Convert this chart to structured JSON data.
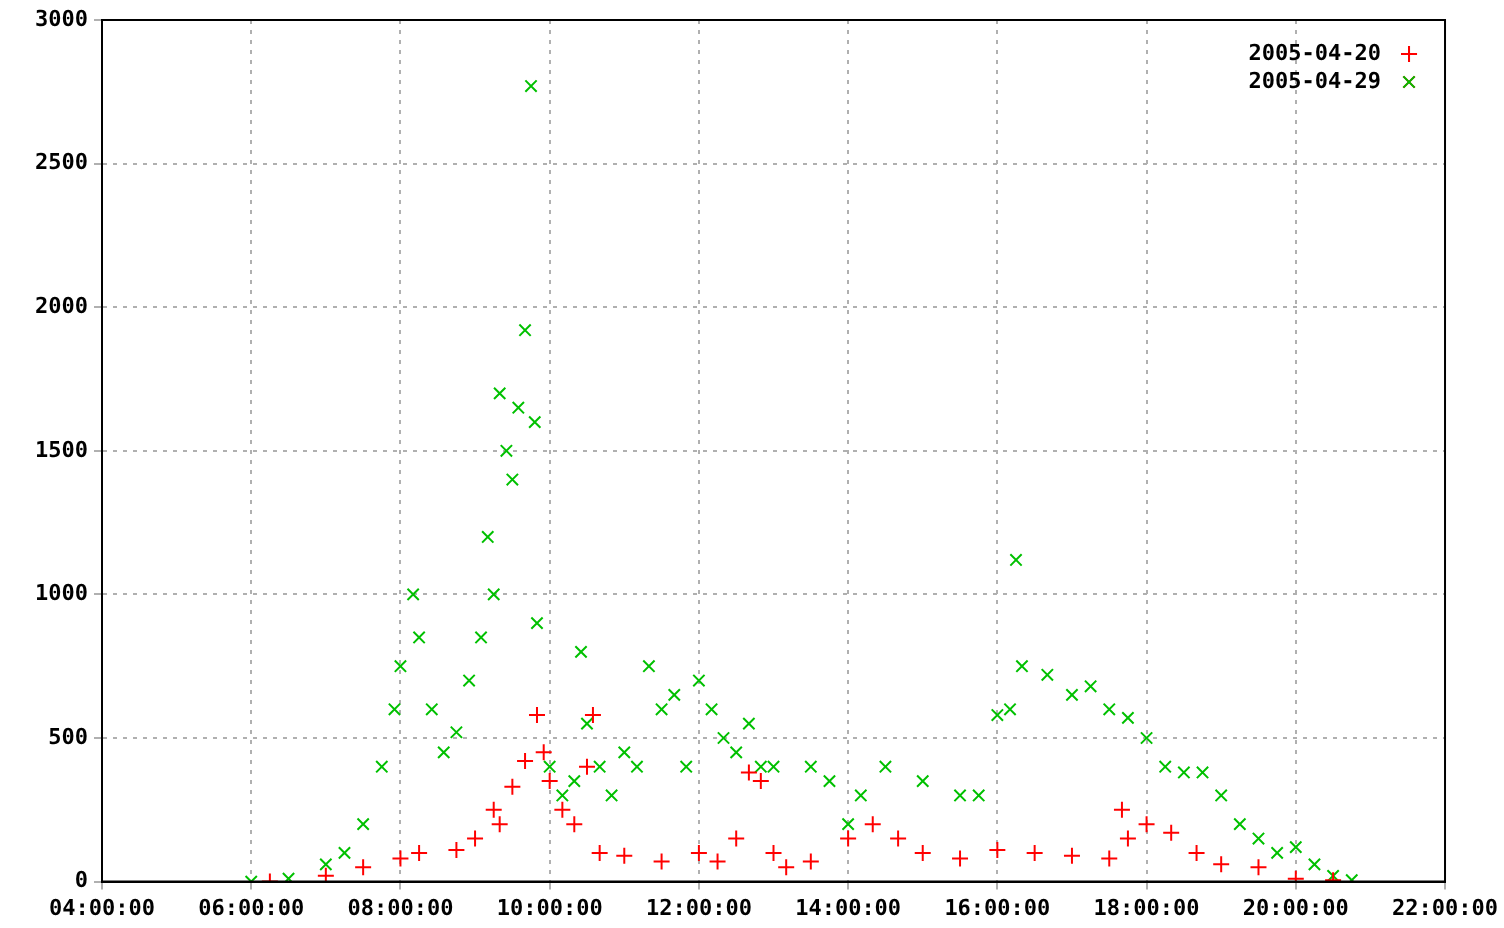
{
  "chart_data": {
    "type": "scatter",
    "xlim": [
      4,
      22
    ],
    "xticks": [
      {
        "value": 4,
        "label": "04:00:00"
      },
      {
        "value": 6,
        "label": "06:00:00"
      },
      {
        "value": 8,
        "label": "08:00:00"
      },
      {
        "value": 10,
        "label": "10:00:00"
      },
      {
        "value": 12,
        "label": "12:00:00"
      },
      {
        "value": 14,
        "label": "14:00:00"
      },
      {
        "value": 16,
        "label": "16:00:00"
      },
      {
        "value": 18,
        "label": "18:00:00"
      },
      {
        "value": 20,
        "label": "20:00:00"
      },
      {
        "value": 22,
        "label": "22:00:00"
      }
    ],
    "ylim": [
      0,
      3000
    ],
    "yticks": [
      0,
      500,
      1000,
      1500,
      2000,
      2500,
      3000
    ],
    "grid": true,
    "legend": "top right",
    "series": [
      {
        "name": "2005-04-20",
        "color": "#ff0000",
        "marker": "cross",
        "x": [
          6.25,
          7,
          7.5,
          8,
          8.25,
          8.75,
          9,
          9.25,
          9.33,
          9.5,
          9.67,
          9.83,
          9.92,
          10,
          10.17,
          10.33,
          10.5,
          10.58,
          10.67,
          11,
          11.5,
          12,
          12.25,
          12.5,
          12.67,
          12.83,
          13,
          13.17,
          13.5,
          14,
          14.33,
          14.67,
          15,
          15.5,
          16,
          16.5,
          17,
          17.5,
          17.67,
          17.75,
          18,
          18.33,
          18.67,
          19,
          19.5,
          20,
          20.5
        ],
        "values": [
          0,
          20,
          50,
          80,
          100,
          110,
          150,
          250,
          200,
          330,
          420,
          580,
          450,
          350,
          250,
          200,
          400,
          580,
          100,
          90,
          70,
          100,
          70,
          150,
          380,
          350,
          100,
          50,
          70,
          150,
          200,
          150,
          100,
          80,
          110,
          100,
          90,
          80,
          250,
          150,
          200,
          170,
          100,
          60,
          50,
          10,
          5
        ]
      },
      {
        "name": "2005-04-29",
        "color": "#00c000",
        "marker": "x",
        "x": [
          6,
          6.5,
          7,
          7.25,
          7.5,
          7.75,
          7.92,
          8,
          8.17,
          8.25,
          8.42,
          8.58,
          8.75,
          8.92,
          9.08,
          9.17,
          9.25,
          9.33,
          9.42,
          9.5,
          9.58,
          9.67,
          9.75,
          9.8,
          9.83,
          10,
          10.17,
          10.33,
          10.42,
          10.5,
          10.67,
          10.83,
          11,
          11.17,
          11.33,
          11.5,
          11.67,
          11.83,
          12,
          12.17,
          12.33,
          12.5,
          12.67,
          12.83,
          13,
          13.5,
          13.75,
          14,
          14.17,
          14.5,
          15,
          15.5,
          15.75,
          16,
          16.17,
          16.25,
          16.33,
          16.67,
          17,
          17.25,
          17.5,
          17.75,
          18,
          18.25,
          18.5,
          18.75,
          19,
          19.25,
          19.5,
          19.75,
          20,
          20.25,
          20.5,
          20.75
        ],
        "values": [
          0,
          10,
          60,
          100,
          200,
          400,
          600,
          750,
          1000,
          850,
          600,
          450,
          520,
          700,
          850,
          1200,
          1000,
          1700,
          1500,
          1400,
          1650,
          1920,
          2770,
          1600,
          900,
          400,
          300,
          350,
          800,
          550,
          400,
          300,
          450,
          400,
          750,
          600,
          650,
          400,
          700,
          600,
          500,
          450,
          550,
          400,
          400,
          400,
          350,
          200,
          300,
          400,
          350,
          300,
          300,
          580,
          600,
          1120,
          750,
          720,
          650,
          680,
          600,
          570,
          500,
          400,
          380,
          380,
          300,
          200,
          150,
          100,
          120,
          60,
          20,
          5
        ]
      }
    ]
  }
}
